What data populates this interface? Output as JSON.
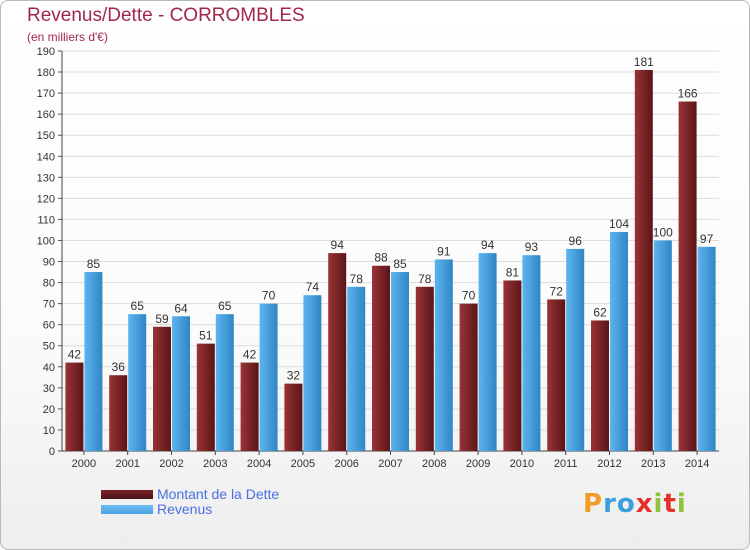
{
  "colors": {
    "debt": "#7a2326",
    "revenue": "#4aa3e2",
    "title": "#a0284a",
    "legend_text": "#4a6fe0"
  },
  "chart_data": {
    "type": "bar",
    "title": "Revenus/Dette - CORROMBLES",
    "subtitle": "(en milliers d'€)",
    "categories": [
      "2000",
      "2001",
      "2002",
      "2003",
      "2004",
      "2005",
      "2006",
      "2007",
      "2008",
      "2009",
      "2010",
      "2011",
      "2012",
      "2013",
      "2014"
    ],
    "series": [
      {
        "name": "Montant de la Dette",
        "color": "#7a2326",
        "values": [
          42,
          36,
          59,
          51,
          42,
          32,
          94,
          88,
          78,
          70,
          81,
          72,
          62,
          181,
          166
        ]
      },
      {
        "name": "Revenus",
        "color": "#4aa3e2",
        "values": [
          85,
          65,
          64,
          65,
          70,
          74,
          78,
          85,
          91,
          94,
          93,
          96,
          104,
          100,
          97
        ]
      }
    ],
    "ylim": [
      0,
      190
    ],
    "ytick_step": 10,
    "grid": true,
    "legend": "bottom-left"
  },
  "logo": {
    "letters": [
      "P",
      "r",
      "o",
      "x",
      "i",
      "t",
      "i"
    ],
    "colors": [
      "#f29b26",
      "#3a9fdc",
      "#3a9fdc",
      "#e4322b",
      "#8fc43a",
      "#e4322b",
      "#8fc43a"
    ]
  }
}
